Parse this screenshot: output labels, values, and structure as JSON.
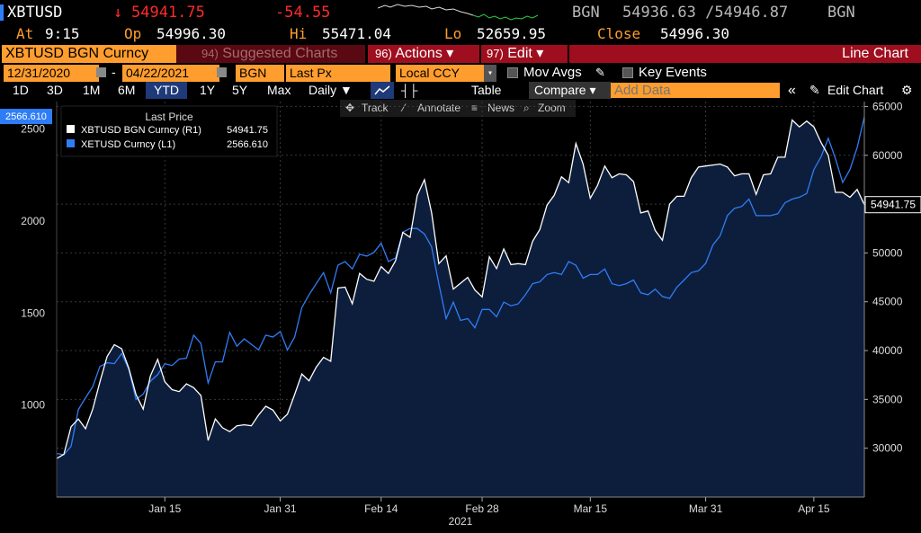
{
  "header": {
    "ticker": "XBTUSD",
    "last_arrow": "↓",
    "last": "54941.75",
    "change": "-54.55",
    "source": "BGN",
    "bid_ask": "54936.63 /54946.87",
    "source2": "BGN",
    "at_label": "At",
    "at_value": "9:15",
    "op_label": "Op",
    "op_value": "54996.30",
    "hi_label": "Hi",
    "hi_value": "55471.04",
    "lo_label": "Lo",
    "lo_value": "52659.95",
    "close_label": "Close",
    "close_value": "54996.30"
  },
  "toolbar": {
    "security": "XBTUSD BGN Curncy",
    "suggested_num": "94)",
    "suggested": "Suggested Charts",
    "actions_num": "96)",
    "actions": "Actions ▾",
    "edit_num": "97)",
    "edit": "Edit ▾",
    "view_title": "Line Chart",
    "start_date": "12/31/2020",
    "end_date": "04/22/2021",
    "dash": "-",
    "pricing_source": "BGN",
    "field": "Last Px",
    "currency": "Local CCY",
    "mov_avgs": "Mov Avgs",
    "key_events": "Key Events",
    "periods": [
      "1D",
      "3D",
      "1M",
      "6M",
      "YTD",
      "1Y",
      "5Y",
      "Max"
    ],
    "frequency": "Daily ▼",
    "table": "Table",
    "compare": "Compare ▾",
    "add_data_placeholder": "Add Data",
    "collapse": "«",
    "edit_chart": "Edit Chart",
    "gear": "⚙"
  },
  "chart_controls": {
    "track": "Track",
    "annotate": "Annotate",
    "news": "News",
    "zoom": "Zoom"
  },
  "colors": {
    "accent_orange": "#ff9d2e",
    "action_red": "#9e0e1e",
    "series_white": "#ffffff",
    "series_blue": "#2f7df6",
    "area_fill": "#0d1e3c"
  },
  "chart_data": {
    "type": "line",
    "legend_title": "Last Price",
    "legend_position": "top-left",
    "xlabel": "2021",
    "x_tick_labels": [
      "Jan 15",
      "Jan 31",
      "Feb 14",
      "Feb 28",
      "Mar 15",
      "Mar 31",
      "Apr 15"
    ],
    "x_tick_dates": [
      "2021-01-15",
      "2021-01-31",
      "2021-02-14",
      "2021-02-28",
      "2021-03-15",
      "2021-03-31",
      "2021-04-15"
    ],
    "x_range": [
      "2020-12-31",
      "2021-04-22"
    ],
    "y_right": {
      "ticks": [
        30000,
        35000,
        40000,
        45000,
        50000,
        55000,
        60000,
        65000
      ],
      "tick_labels": [
        "30000",
        "35000",
        "40000",
        "45000",
        "50000",
        "55000",
        "60000",
        "65000"
      ],
      "range": [
        25000,
        65500
      ]
    },
    "y_left": {
      "ticks": [
        1000,
        1500,
        2000,
        2500
      ],
      "tick_labels": [
        "1000",
        "1500",
        "2000",
        "2500"
      ],
      "range": [
        500,
        2650
      ]
    },
    "grid": true,
    "series": [
      {
        "name": "XBTUSD BGN Curncy (R1)",
        "legend_value": "54941.75",
        "axis": "right",
        "color": "#ffffff",
        "area": true,
        "last_label": "54941.75",
        "x": [
          "2020-12-31",
          "2021-01-01",
          "2021-01-02",
          "2021-01-03",
          "2021-01-04",
          "2021-01-05",
          "2021-01-06",
          "2021-01-07",
          "2021-01-08",
          "2021-01-09",
          "2021-01-10",
          "2021-01-11",
          "2021-01-12",
          "2021-01-13",
          "2021-01-14",
          "2021-01-15",
          "2021-01-16",
          "2021-01-17",
          "2021-01-18",
          "2021-01-19",
          "2021-01-20",
          "2021-01-21",
          "2021-01-22",
          "2021-01-23",
          "2021-01-24",
          "2021-01-25",
          "2021-01-26",
          "2021-01-27",
          "2021-01-28",
          "2021-01-29",
          "2021-01-30",
          "2021-01-31",
          "2021-02-01",
          "2021-02-02",
          "2021-02-03",
          "2021-02-04",
          "2021-02-05",
          "2021-02-06",
          "2021-02-07",
          "2021-02-08",
          "2021-02-09",
          "2021-02-10",
          "2021-02-11",
          "2021-02-12",
          "2021-02-13",
          "2021-02-14",
          "2021-02-15",
          "2021-02-16",
          "2021-02-17",
          "2021-02-18",
          "2021-02-19",
          "2021-02-20",
          "2021-02-21",
          "2021-02-22",
          "2021-02-23",
          "2021-02-24",
          "2021-02-25",
          "2021-02-26",
          "2021-02-27",
          "2021-02-28",
          "2021-03-01",
          "2021-03-02",
          "2021-03-03",
          "2021-03-04",
          "2021-03-05",
          "2021-03-06",
          "2021-03-07",
          "2021-03-08",
          "2021-03-09",
          "2021-03-10",
          "2021-03-11",
          "2021-03-12",
          "2021-03-13",
          "2021-03-14",
          "2021-03-15",
          "2021-03-16",
          "2021-03-17",
          "2021-03-18",
          "2021-03-19",
          "2021-03-20",
          "2021-03-21",
          "2021-03-22",
          "2021-03-23",
          "2021-03-24",
          "2021-03-25",
          "2021-03-26",
          "2021-03-27",
          "2021-03-28",
          "2021-03-29",
          "2021-03-30",
          "2021-03-31",
          "2021-04-01",
          "2021-04-02",
          "2021-04-03",
          "2021-04-04",
          "2021-04-05",
          "2021-04-06",
          "2021-04-07",
          "2021-04-08",
          "2021-04-09",
          "2021-04-10",
          "2021-04-11",
          "2021-04-12",
          "2021-04-13",
          "2021-04-14",
          "2021-04-15",
          "2021-04-16",
          "2021-04-17",
          "2021-04-18",
          "2021-04-19",
          "2021-04-20",
          "2021-04-21",
          "2021-04-22"
        ],
        "y": [
          28950,
          29370,
          32200,
          33000,
          32000,
          34000,
          36800,
          39400,
          40600,
          40200,
          38200,
          35500,
          34000,
          37400,
          39100,
          36800,
          36000,
          35800,
          36600,
          36200,
          35400,
          30800,
          33000,
          32100,
          31700,
          32300,
          32400,
          32300,
          33400,
          34300,
          33900,
          32800,
          33500,
          35500,
          37600,
          36900,
          38300,
          39300,
          38900,
          46400,
          46500,
          44800,
          47900,
          47300,
          47100,
          48600,
          47900,
          49200,
          52100,
          51600,
          55900,
          57500,
          54100,
          48900,
          49700,
          46300,
          46900,
          47500,
          46200,
          45500,
          49600,
          48400,
          50400,
          48800,
          48900,
          48800,
          51200,
          52400,
          54900,
          55900,
          57800,
          57200,
          61200,
          59100,
          55600,
          56900,
          58900,
          57700,
          58100,
          58000,
          57300,
          54100,
          54300,
          52300,
          51300,
          55000,
          55800,
          55800,
          57700,
          58800,
          58900,
          59000,
          59100,
          58800,
          57900,
          58100,
          58100,
          56000,
          58000,
          58100,
          59800,
          59800,
          63600,
          62900,
          63500,
          62900,
          61300,
          60000,
          56200,
          56200,
          55700,
          56500,
          54941.75
        ]
      },
      {
        "name": "XETUSD Curncy (L1)",
        "legend_value": "2566.610",
        "axis": "left",
        "color": "#2f7df6",
        "area": false,
        "last_label": "2566.610",
        "x": [
          "2020-12-31",
          "2021-01-01",
          "2021-01-02",
          "2021-01-03",
          "2021-01-04",
          "2021-01-05",
          "2021-01-06",
          "2021-01-07",
          "2021-01-08",
          "2021-01-09",
          "2021-01-10",
          "2021-01-11",
          "2021-01-12",
          "2021-01-13",
          "2021-01-14",
          "2021-01-15",
          "2021-01-16",
          "2021-01-17",
          "2021-01-18",
          "2021-01-19",
          "2021-01-20",
          "2021-01-21",
          "2021-01-22",
          "2021-01-23",
          "2021-01-24",
          "2021-01-25",
          "2021-01-26",
          "2021-01-27",
          "2021-01-28",
          "2021-01-29",
          "2021-01-30",
          "2021-01-31",
          "2021-02-01",
          "2021-02-02",
          "2021-02-03",
          "2021-02-04",
          "2021-02-05",
          "2021-02-06",
          "2021-02-07",
          "2021-02-08",
          "2021-02-09",
          "2021-02-10",
          "2021-02-11",
          "2021-02-12",
          "2021-02-13",
          "2021-02-14",
          "2021-02-15",
          "2021-02-16",
          "2021-02-17",
          "2021-02-18",
          "2021-02-19",
          "2021-02-20",
          "2021-02-21",
          "2021-02-22",
          "2021-02-23",
          "2021-02-24",
          "2021-02-25",
          "2021-02-26",
          "2021-02-27",
          "2021-02-28",
          "2021-03-01",
          "2021-03-02",
          "2021-03-03",
          "2021-03-04",
          "2021-03-05",
          "2021-03-06",
          "2021-03-07",
          "2021-03-08",
          "2021-03-09",
          "2021-03-10",
          "2021-03-11",
          "2021-03-12",
          "2021-03-13",
          "2021-03-14",
          "2021-03-15",
          "2021-03-16",
          "2021-03-17",
          "2021-03-18",
          "2021-03-19",
          "2021-03-20",
          "2021-03-21",
          "2021-03-22",
          "2021-03-23",
          "2021-03-24",
          "2021-03-25",
          "2021-03-26",
          "2021-03-27",
          "2021-03-28",
          "2021-03-29",
          "2021-03-30",
          "2021-03-31",
          "2021-04-01",
          "2021-04-02",
          "2021-04-03",
          "2021-04-04",
          "2021-04-05",
          "2021-04-06",
          "2021-04-07",
          "2021-04-08",
          "2021-04-09",
          "2021-04-10",
          "2021-04-11",
          "2021-04-12",
          "2021-04-13",
          "2021-04-14",
          "2021-04-15",
          "2021-04-16",
          "2021-04-17",
          "2021-04-18",
          "2021-04-19",
          "2021-04-20",
          "2021-04-21",
          "2021-04-22"
        ],
        "y": [
          737,
          730,
          775,
          975,
          1040,
          1100,
          1210,
          1230,
          1225,
          1280,
          1195,
          1030,
          1060,
          1130,
          1165,
          1225,
          1215,
          1250,
          1255,
          1380,
          1335,
          1120,
          1235,
          1235,
          1395,
          1320,
          1360,
          1330,
          1300,
          1380,
          1370,
          1400,
          1300,
          1370,
          1530,
          1600,
          1660,
          1720,
          1610,
          1760,
          1780,
          1740,
          1820,
          1810,
          1830,
          1880,
          1780,
          1800,
          1940,
          1960,
          1960,
          1930,
          1860,
          1660,
          1470,
          1560,
          1460,
          1470,
          1420,
          1520,
          1520,
          1480,
          1560,
          1540,
          1550,
          1600,
          1660,
          1670,
          1710,
          1720,
          1710,
          1780,
          1760,
          1690,
          1710,
          1710,
          1740,
          1660,
          1650,
          1660,
          1680,
          1610,
          1600,
          1630,
          1590,
          1580,
          1640,
          1680,
          1720,
          1730,
          1770,
          1870,
          1920,
          2030,
          2070,
          2080,
          2120,
          2030,
          2030,
          2030,
          2040,
          2100,
          2120,
          2130,
          2150,
          2280,
          2350,
          2450,
          2340,
          2210,
          2280,
          2400,
          2566.61
        ]
      }
    ]
  }
}
